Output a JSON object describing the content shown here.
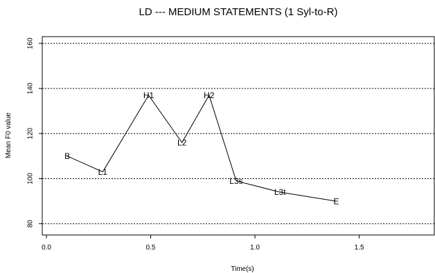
{
  "chart_data": {
    "type": "line",
    "title": "LD --- MEDIUM STATEMENTS (1 Syl-to-R)",
    "xlabel": "Time(s)",
    "ylabel": "Mean F0 value",
    "xlim": [
      -0.02,
      1.86
    ],
    "ylim": [
      75,
      163
    ],
    "x_ticks": [
      0.0,
      0.5,
      1.0,
      1.5
    ],
    "x_tick_labels": [
      "0.0",
      "0.5",
      "1.0",
      "1.5"
    ],
    "y_ticks": [
      80,
      100,
      120,
      140,
      160
    ],
    "y_tick_labels": [
      "80",
      "100",
      "120",
      "140",
      "160"
    ],
    "grid": "horizontal dotted",
    "points": [
      {
        "label": "B",
        "x": 0.1,
        "y": 110
      },
      {
        "label": "L1",
        "x": 0.27,
        "y": 103
      },
      {
        "label": "H1",
        "x": 0.49,
        "y": 137
      },
      {
        "label": "L2",
        "x": 0.65,
        "y": 116
      },
      {
        "label": "H2",
        "x": 0.78,
        "y": 137
      },
      {
        "label": "L3s",
        "x": 0.91,
        "y": 99
      },
      {
        "label": "L3t",
        "x": 1.12,
        "y": 94
      },
      {
        "label": "E",
        "x": 1.39,
        "y": 90
      }
    ]
  }
}
